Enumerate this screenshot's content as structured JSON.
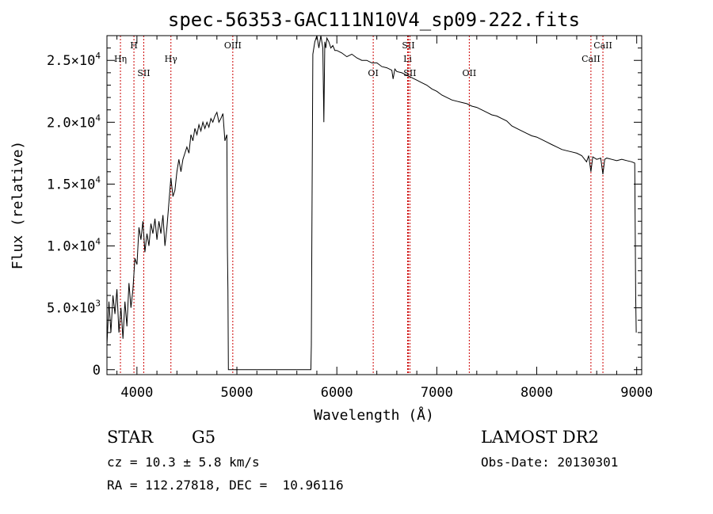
{
  "chart_data": {
    "type": "line",
    "title": "spec-56353-GAC111N10V4_sp09-222.fits",
    "xlabel": "Wavelength (Å)",
    "ylabel": "Flux (relative)",
    "xlim": [
      3700,
      9050
    ],
    "ylim": [
      -400,
      27000
    ],
    "xticks": [
      4000,
      5000,
      6000,
      7000,
      8000,
      9000
    ],
    "xtick_labels": [
      "4000",
      "5000",
      "6000",
      "7000",
      "8000",
      "9000"
    ],
    "yticks": [
      0,
      5000,
      10000,
      15000,
      20000,
      25000
    ],
    "ytick_labels": [
      {
        "mant": "0",
        "exp": ""
      },
      {
        "mant": "5.0×10",
        "exp": "3"
      },
      {
        "mant": "1.0×10",
        "exp": "4"
      },
      {
        "mant": "1.5×10",
        "exp": "4"
      },
      {
        "mant": "2.0×10",
        "exp": "4"
      },
      {
        "mant": "2.5×10",
        "exp": "4"
      }
    ],
    "grid": false,
    "line_color": "#000000",
    "marker_color": "#cc0000",
    "series": [
      {
        "x": [
          3700,
          3720,
          3740,
          3760,
          3780,
          3800,
          3820,
          3840,
          3860,
          3880,
          3900,
          3920,
          3940,
          3960,
          3980,
          4000,
          4020,
          4040,
          4060,
          4080,
          4100,
          4120,
          4140,
          4160,
          4180,
          4200,
          4220,
          4240,
          4260,
          4280,
          4300,
          4320,
          4340,
          4360,
          4380,
          4400,
          4420,
          4440,
          4460,
          4480,
          4500,
          4520,
          4540,
          4560,
          4580,
          4600,
          4620,
          4640,
          4660,
          4680,
          4700,
          4720,
          4740,
          4760,
          4780,
          4800,
          4820,
          4840,
          4860,
          4880,
          4900,
          4905,
          4910,
          4915,
          4925,
          4935,
          5740,
          5745,
          5750,
          5760,
          5780,
          5800,
          5820,
          5840,
          5860,
          5870,
          5880,
          5890,
          5900,
          5920,
          5940,
          5960,
          5980,
          6000,
          6050,
          6100,
          6150,
          6200,
          6250,
          6300,
          6350,
          6400,
          6450,
          6500,
          6550,
          6563,
          6580,
          6600,
          6650,
          6700,
          6750,
          6800,
          6850,
          6900,
          6950,
          7000,
          7050,
          7100,
          7150,
          7200,
          7250,
          7300,
          7350,
          7400,
          7450,
          7500,
          7550,
          7600,
          7650,
          7700,
          7750,
          7800,
          7850,
          7900,
          7950,
          8000,
          8050,
          8100,
          8150,
          8200,
          8250,
          8300,
          8350,
          8400,
          8450,
          8498,
          8520,
          8542,
          8560,
          8600,
          8640,
          8662,
          8680,
          8700,
          8750,
          8800,
          8850,
          8900,
          8950,
          8980,
          8990,
          8995
        ],
        "y": [
          2000,
          5500,
          3000,
          6000,
          4500,
          6500,
          3000,
          5000,
          2500,
          5500,
          3500,
          7000,
          5000,
          6500,
          9000,
          8500,
          11500,
          10500,
          12000,
          9500,
          11000,
          10000,
          11800,
          11000,
          12200,
          10500,
          12000,
          11000,
          12500,
          10000,
          11500,
          13500,
          15500,
          14000,
          14500,
          16000,
          17000,
          16000,
          17000,
          17500,
          18000,
          17500,
          19000,
          18500,
          19500,
          19000,
          19800,
          19300,
          20000,
          19500,
          20000,
          19600,
          20300,
          20000,
          20500,
          20800,
          20000,
          20300,
          20700,
          18500,
          19000,
          10000,
          6500,
          0,
          0,
          0,
          0,
          2000,
          10000,
          25500,
          26500,
          27200,
          26000,
          27000,
          26000,
          20000,
          26500,
          26000,
          26800,
          26500,
          26000,
          26200,
          25800,
          25800,
          25600,
          25300,
          25500,
          25200,
          25000,
          25000,
          24800,
          24800,
          24500,
          24400,
          24200,
          23500,
          24300,
          24100,
          24000,
          23800,
          23600,
          23400,
          23200,
          23000,
          22700,
          22500,
          22200,
          22000,
          21800,
          21700,
          21600,
          21500,
          21300,
          21200,
          21000,
          20800,
          20600,
          20500,
          20300,
          20100,
          19700,
          19500,
          19300,
          19100,
          18900,
          18800,
          18600,
          18400,
          18200,
          18000,
          17800,
          17700,
          17600,
          17500,
          17300,
          16800,
          17300,
          16000,
          17200,
          17000,
          17100,
          15800,
          17000,
          17100,
          17000,
          16900,
          17000,
          16900,
          16800,
          16700,
          6000,
          3000
        ]
      }
    ],
    "markers": [
      {
        "wl": 3835,
        "label": "Hη",
        "row": 2
      },
      {
        "wl": 3970,
        "label": "H",
        "row": 1
      },
      {
        "wl": 4068,
        "label": "SII",
        "row": 3
      },
      {
        "wl": 4340,
        "label": "Hγ",
        "row": 2
      },
      {
        "wl": 4959,
        "label": "OIII",
        "row": 1
      },
      {
        "wl": 6364,
        "label": "OI",
        "row": 3
      },
      {
        "wl": 6708,
        "label": "Li",
        "row": 2
      },
      {
        "wl": 6716,
        "label": "SII",
        "row": 1
      },
      {
        "wl": 6731,
        "label": "SII",
        "row": 3
      },
      {
        "wl": 7325,
        "label": "OII",
        "row": 3
      },
      {
        "wl": 8542,
        "label": "CaII",
        "row": 2
      },
      {
        "wl": 8662,
        "label": "CaII",
        "row": 1
      }
    ]
  },
  "info": {
    "object_class": "STAR",
    "subclass": "G5",
    "redshift_line": "cz = 10.3 ± 5.8 km/s",
    "coords_line": "RA = 112.27818, DEC =  10.96116",
    "survey": "LAMOST DR2",
    "obs_date": "Obs-Date: 20130301"
  }
}
